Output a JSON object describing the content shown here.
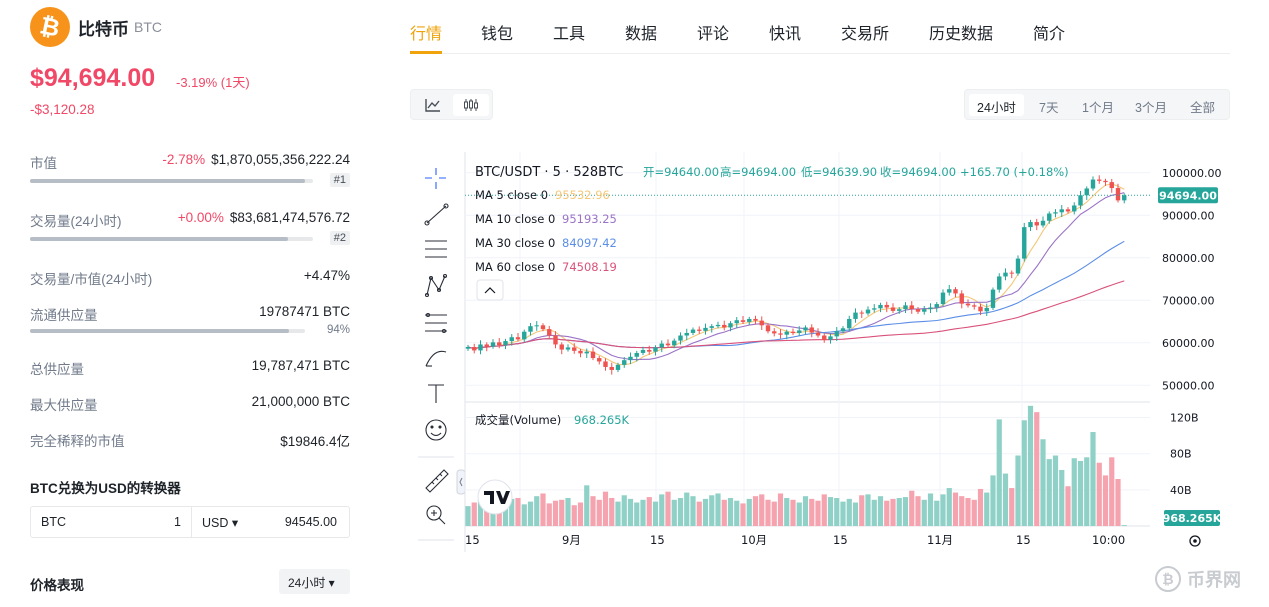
{
  "coin": {
    "logo_icon": "bitcoin-icon",
    "logo_symbol": "₿",
    "name": "比特币",
    "symbol": "BTC",
    "price": "$94,694.00",
    "change_pct": "-3.19% (1天)",
    "change_abs": "-$3,120.28"
  },
  "stats": {
    "market_cap": {
      "label": "市值",
      "change": "-2.78%",
      "value": "$1,870,055,356,222.24",
      "rank": "#1",
      "fill_pct": 97
    },
    "volume": {
      "label": "交易量(24小时)",
      "change": "+0.00%",
      "value": "$83,681,474,576.72",
      "rank": "#2",
      "fill_pct": 91
    },
    "vol_mcap": {
      "label": "交易量/市值(24小时)",
      "value": "+4.47%"
    },
    "circ_supply": {
      "label": "流通供应量",
      "value": "19787471 BTC",
      "pct": "94%",
      "fill_pct": 94
    },
    "total_supply": {
      "label": "总供应量",
      "value": "19,787,471 BTC"
    },
    "max_supply": {
      "label": "最大供应量",
      "value": "21,000,000 BTC"
    },
    "fdv": {
      "label": "完全稀释的市值",
      "value": "$19846.4亿"
    }
  },
  "converter": {
    "title": "BTC兑换为USD的转换器",
    "from_currency": "BTC",
    "from_amount": "1",
    "to_currency": "USD ▾",
    "to_amount": "94545.00"
  },
  "performance": {
    "title": "价格表现",
    "period": "24小时 ▾"
  },
  "tabs": [
    "行情",
    "钱包",
    "工具",
    "数据",
    "评论",
    "快讯",
    "交易所",
    "历史数据",
    "简介"
  ],
  "ranges": [
    "24小时",
    "7天",
    "1个月",
    "3个月",
    "全部"
  ],
  "chart_data": {
    "type": "candlestick",
    "symbol": "BTC/USDT · 5 · 528BTC",
    "ohlc_labels": {
      "open": "开=94640.00",
      "high": "高=94694.00",
      "low": "低=94639.90",
      "close": "收=94694.00",
      "change": "+165.70 (+0.18%)"
    },
    "ma_series": [
      {
        "name": "MA 5 close 0",
        "value": "95532.96",
        "color": "#f5c778"
      },
      {
        "name": "MA 10 close 0",
        "value": "95193.25",
        "color": "#9a73c7"
      },
      {
        "name": "MA 30 close 0",
        "value": "84097.42",
        "color": "#5b8ee6"
      },
      {
        "name": "MA 60 close 0",
        "value": "74508.19",
        "color": "#d9527a"
      }
    ],
    "price_axis": [
      "100000.00",
      "90000.00",
      "80000.00",
      "70000.00",
      "60000.00",
      "50000.00"
    ],
    "price_ticks": [
      100000,
      90000,
      80000,
      70000,
      60000,
      50000
    ],
    "current_price": "94694.00",
    "current_value": 94694,
    "ylim": [
      47000,
      103000
    ],
    "volume_label": "成交量(Volume)",
    "volume_value": "968.265K",
    "volume_axis": [
      "120B",
      "80B",
      "40B"
    ],
    "volume_ticks": [
      120,
      80,
      40
    ],
    "volume_ylim": [
      0,
      135
    ],
    "x_labels": [
      "15",
      "9月",
      "15",
      "10月",
      "15",
      "11月",
      "15",
      "10:00"
    ],
    "closes": [
      59000,
      58200,
      59600,
      59100,
      60100,
      59400,
      60400,
      61300,
      60800,
      62600,
      63900,
      64100,
      63200,
      61700,
      59600,
      58400,
      58900,
      58100,
      57500,
      57900,
      56400,
      55600,
      54300,
      53600,
      54800,
      55900,
      56700,
      57600,
      58300,
      57900,
      58900,
      59800,
      59400,
      60500,
      61700,
      62300,
      63100,
      62800,
      63500,
      63900,
      64200,
      63600,
      64600,
      65300,
      64900,
      65600,
      65200,
      64100,
      62700,
      62200,
      61900,
      62600,
      62300,
      62900,
      63600,
      62400,
      61700,
      60700,
      61500,
      62700,
      63400,
      65600,
      67100,
      66900,
      67800,
      68100,
      68900,
      68300,
      67500,
      67900,
      68800,
      67900,
      67300,
      67900,
      68300,
      69100,
      71800,
      72600,
      71600,
      69200,
      68800,
      68500,
      67400,
      68200,
      72500,
      75600,
      76500,
      76300,
      79800,
      87200,
      88400,
      87600,
      88700,
      90400,
      90700,
      91400,
      90900,
      92300,
      94700,
      96300,
      98400,
      98100,
      97800,
      96400,
      93500,
      94694
    ],
    "volumes": [
      22,
      26,
      30,
      25,
      28,
      34,
      26,
      30,
      31,
      24,
      27,
      33,
      36,
      25,
      28,
      29,
      31,
      23,
      26,
      45,
      33,
      29,
      38,
      31,
      27,
      34,
      30,
      26,
      29,
      32,
      27,
      35,
      38,
      29,
      31,
      37,
      33,
      27,
      30,
      34,
      36,
      29,
      31,
      28,
      25,
      30,
      33,
      35,
      29,
      27,
      36,
      31,
      29,
      26,
      33,
      30,
      28,
      35,
      32,
      31,
      27,
      30,
      26,
      34,
      35,
      29,
      33,
      28,
      30,
      31,
      32,
      39,
      33,
      29,
      36,
      28,
      35,
      42,
      37,
      33,
      31,
      29,
      41,
      37,
      56,
      118,
      58,
      42,
      78,
      117,
      133,
      126,
      96,
      74,
      78,
      62,
      44,
      75,
      72,
      76,
      104,
      70,
      56,
      76,
      52,
      1
    ]
  }
}
